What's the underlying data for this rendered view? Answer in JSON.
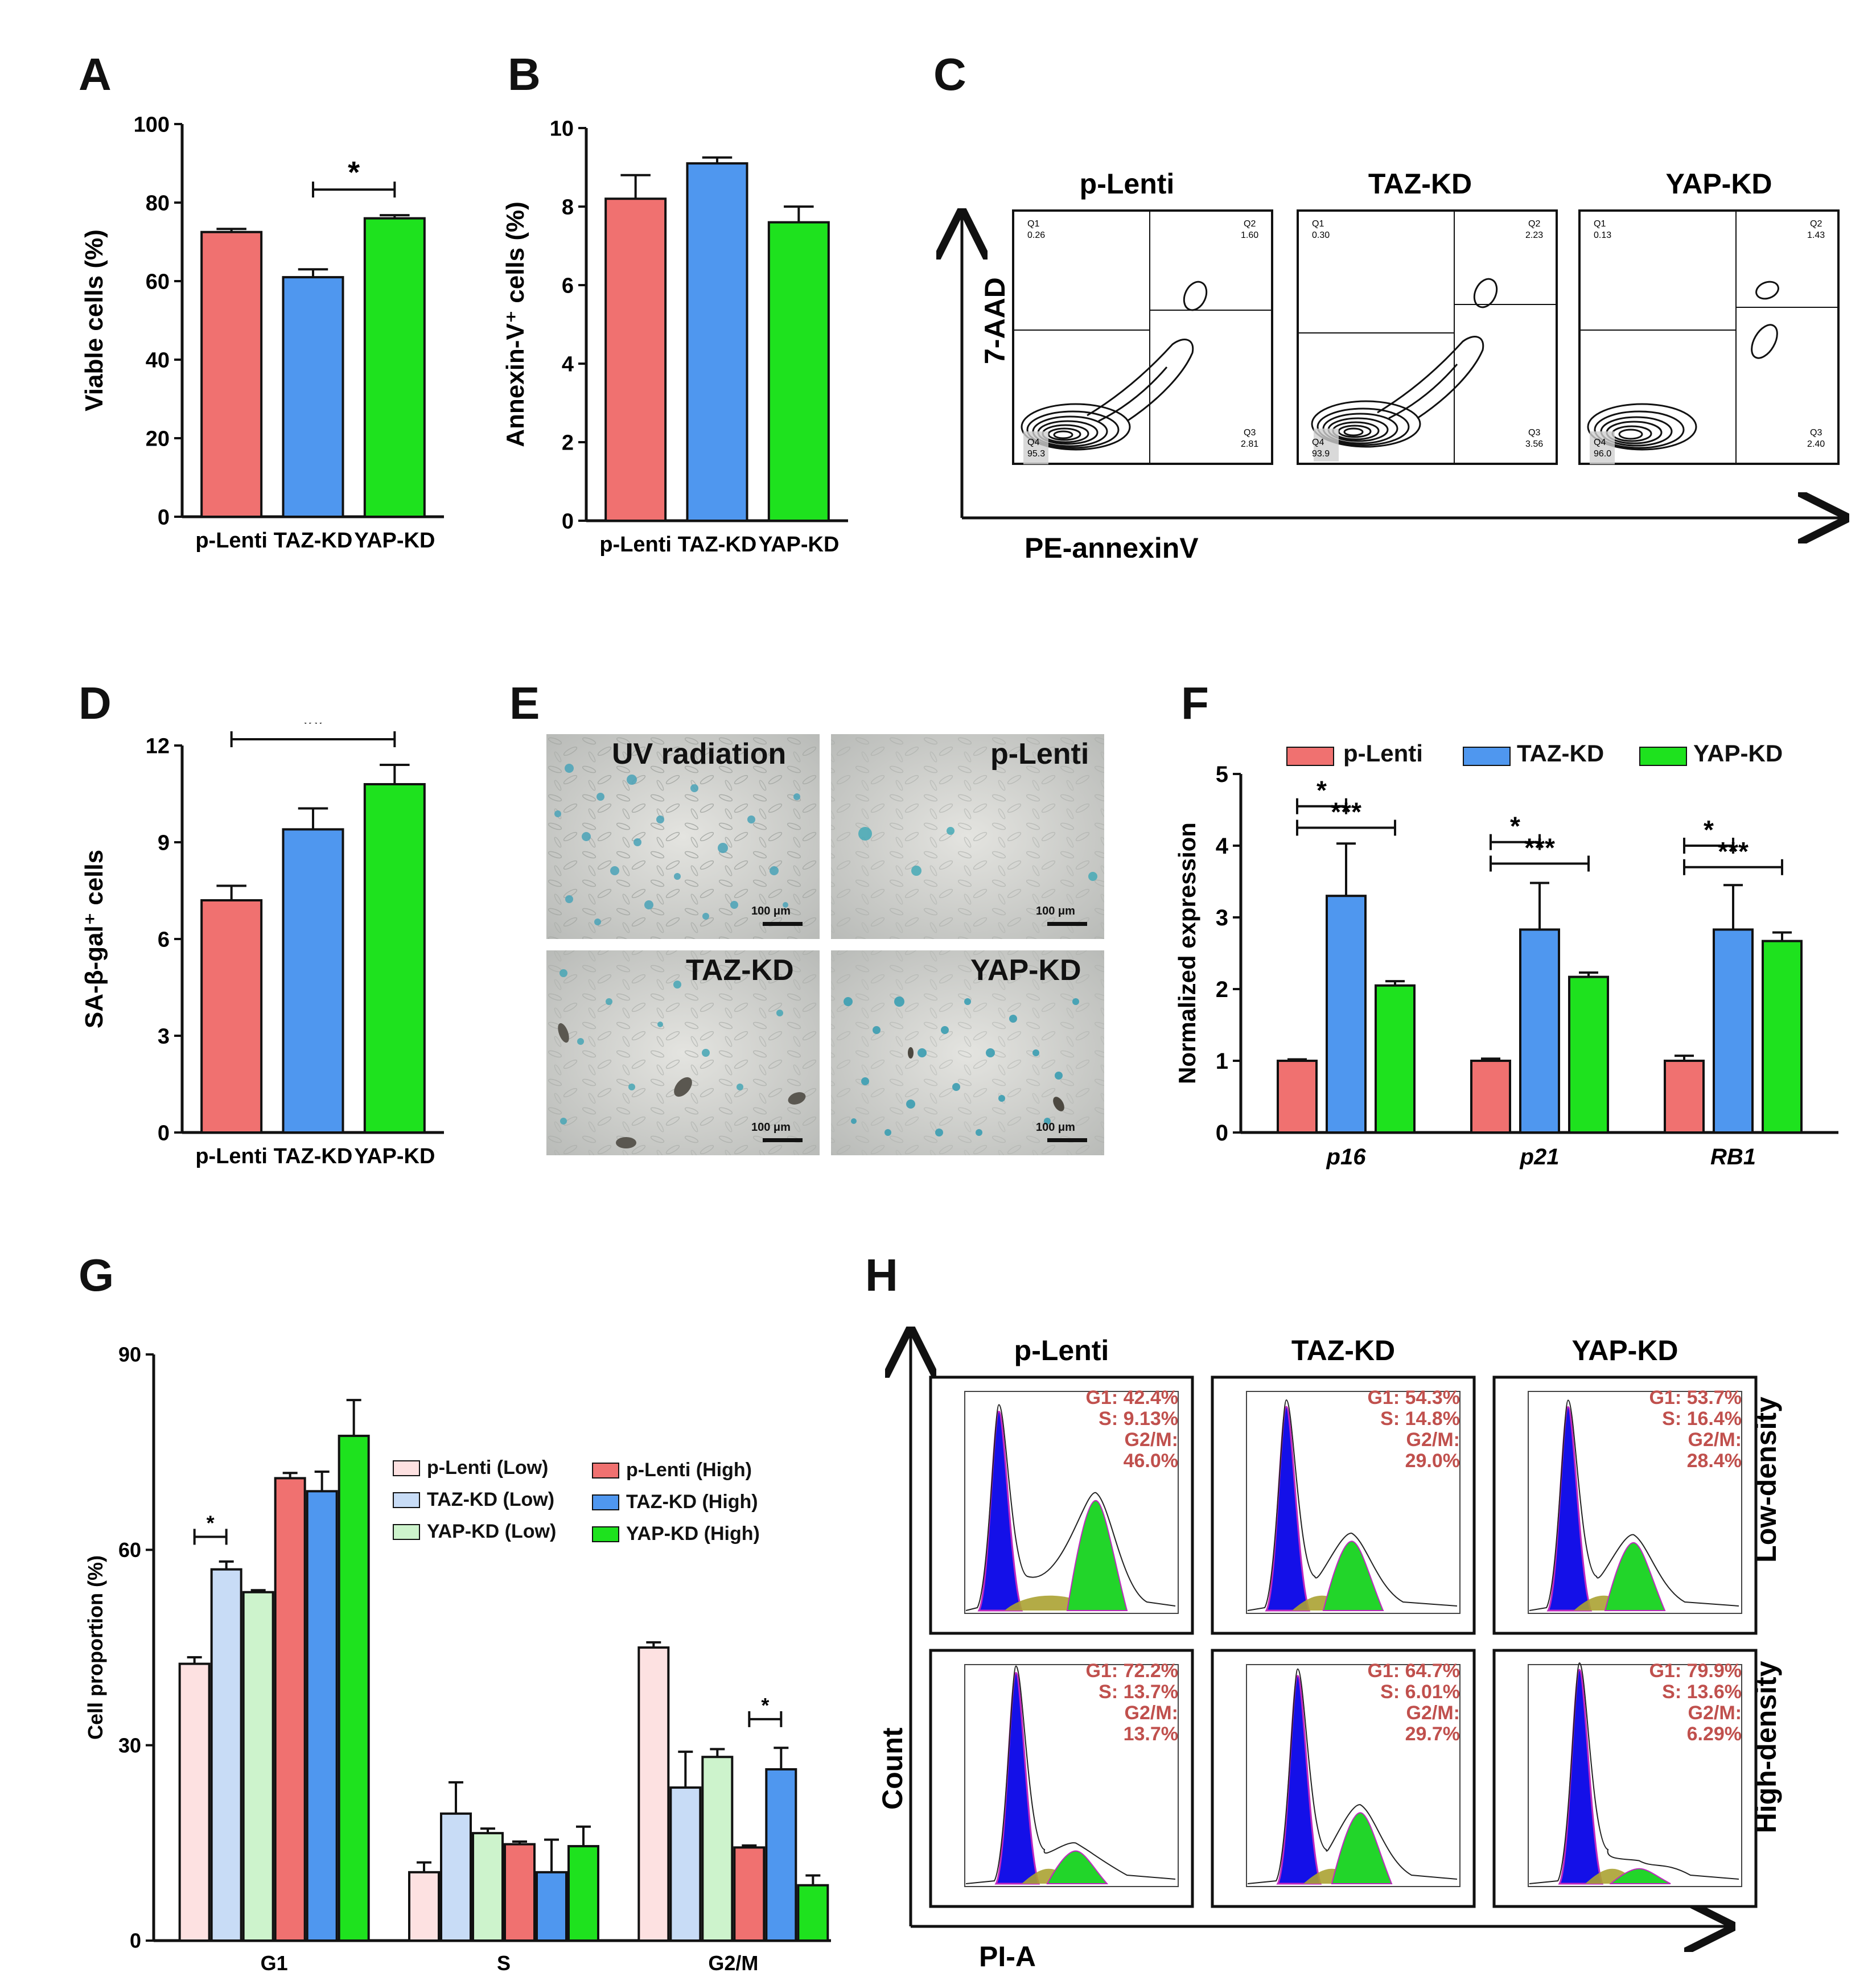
{
  "colors": {
    "plenti": "#f07170",
    "taz": "#4f97ef",
    "yap": "#1ee21e",
    "plenti_low": "#fde1e1",
    "taz_low": "#c8dcf6",
    "yap_low": "#cdf3cc",
    "annot": "#c0504d",
    "flow_blue": "#1410e8",
    "flow_green": "#22d52a",
    "flow_olive": "#aba232",
    "purple": "#c028c0"
  },
  "chart_data": [
    {
      "id": "A",
      "letter": "A",
      "type": "bar",
      "categories": [
        "p-Lenti",
        "TAZ-KD",
        "YAP-KD"
      ],
      "values": [
        72.5,
        61,
        76
      ],
      "errors": [
        0.8,
        2,
        0.8
      ],
      "ylabel": "Viable cells (%)",
      "ylim": [
        0,
        100
      ],
      "yticks": [
        "0",
        "20",
        "40",
        "60",
        "80",
        "100"
      ],
      "signif": [
        {
          "from": 1,
          "to": 2,
          "label": "*"
        }
      ]
    },
    {
      "id": "B",
      "letter": "B",
      "type": "bar",
      "categories": [
        "p-Lenti",
        "TAZ-KD",
        "YAP-KD"
      ],
      "values": [
        8.2,
        9.1,
        7.6
      ],
      "errors": [
        0.6,
        0.15,
        0.4
      ],
      "ylabel": "Annexin-V⁺ cells (%)",
      "ylim": [
        0,
        10
      ],
      "yticks": [
        "0",
        "2",
        "4",
        "6",
        "8",
        "10"
      ],
      "signif": []
    },
    {
      "id": "D",
      "letter": "D",
      "type": "bar",
      "categories": [
        "p-Lenti",
        "TAZ-KD",
        "YAP-KD"
      ],
      "values": [
        7.2,
        9.4,
        10.8
      ],
      "errors": [
        0.45,
        0.65,
        0.6
      ],
      "ylabel": "SA-β-gal⁺ cells",
      "ylim": [
        0,
        12
      ],
      "yticks": [
        "0",
        "3",
        "6",
        "9",
        "12"
      ],
      "signif": [
        {
          "from": 0,
          "to": 2,
          "label": "**"
        }
      ]
    },
    {
      "id": "F",
      "letter": "F",
      "type": "bar",
      "categories": [
        "p16",
        "p21",
        "RB1"
      ],
      "series": [
        {
          "name": "p-Lenti",
          "values": [
            1.0,
            1.0,
            1.0
          ],
          "errors": [
            0.02,
            0.03,
            0.07
          ]
        },
        {
          "name": "TAZ-KD",
          "values": [
            3.3,
            2.83,
            2.83
          ],
          "errors": [
            0.73,
            0.65,
            0.62
          ]
        },
        {
          "name": "YAP-KD",
          "values": [
            2.05,
            2.17,
            2.67
          ],
          "errors": [
            0.06,
            0.06,
            0.12
          ]
        }
      ],
      "ylabel": "Normalized expression",
      "ylim": [
        0,
        5
      ],
      "yticks": [
        "0",
        "1",
        "2",
        "3",
        "4",
        "5"
      ],
      "signif": [
        {
          "group": 0,
          "from": 0,
          "to": 1,
          "label": "*",
          "level": 4.55
        },
        {
          "group": 0,
          "from": 0,
          "to": 2,
          "label": "***",
          "level": 4.25
        },
        {
          "group": 1,
          "from": 0,
          "to": 1,
          "label": "*",
          "level": 4.05
        },
        {
          "group": 1,
          "from": 0,
          "to": 2,
          "label": "***",
          "level": 3.75
        },
        {
          "group": 2,
          "from": 0,
          "to": 1,
          "label": "*",
          "level": 4.0
        },
        {
          "group": 2,
          "from": 0,
          "to": 2,
          "label": "***",
          "level": 3.7
        }
      ]
    },
    {
      "id": "G",
      "letter": "G",
      "type": "bar",
      "categories": [
        "G1",
        "S",
        "G2/M"
      ],
      "series": [
        {
          "name": "p-Lenti (Low)",
          "values": [
            42.5,
            10.5,
            45
          ],
          "errors": [
            1,
            1.5,
            0.8
          ]
        },
        {
          "name": "TAZ-KD (Low)",
          "values": [
            57,
            19.5,
            23.5
          ],
          "errors": [
            1.2,
            4.8,
            5.5
          ]
        },
        {
          "name": "YAP-KD (Low)",
          "values": [
            53.5,
            16.5,
            28.2
          ],
          "errors": [
            0.3,
            0.7,
            1.2
          ]
        },
        {
          "name": "p-Lenti (High)",
          "values": [
            71,
            14.8,
            14.3
          ],
          "errors": [
            0.8,
            0.4,
            0.3
          ]
        },
        {
          "name": "TAZ-KD (High)",
          "values": [
            69,
            10.5,
            26.3
          ],
          "errors": [
            3,
            5,
            3.3
          ]
        },
        {
          "name": "YAP-KD (High)",
          "values": [
            77.5,
            14.5,
            8.5
          ],
          "errors": [
            5.5,
            3,
            1.5
          ]
        }
      ],
      "ylabel": "Cell proportion (%)",
      "ylim": [
        0,
        90
      ],
      "yticks": [
        "0",
        "30",
        "60",
        "90"
      ],
      "signif": [
        {
          "group": 0,
          "from": 0,
          "to": 1,
          "label": "*",
          "level": 62
        },
        {
          "group": 2,
          "from": 3,
          "to": 4,
          "label": "*",
          "level": 34
        }
      ]
    }
  ],
  "panel_c": {
    "letter": "C",
    "titles": [
      "p-Lenti",
      "TAZ-KD",
      "YAP-KD"
    ],
    "xlabel": "PE-annexinV",
    "ylabel": "7-AAD",
    "quadrants": [
      {
        "q1": "Q1",
        "q1v": "0.26",
        "q2": "Q2",
        "q2v": "1.60",
        "q3": "Q3",
        "q3v": "2.81",
        "q4": "Q4",
        "q4v": "95.3"
      },
      {
        "q1": "Q1",
        "q1v": "0.30",
        "q2": "Q2",
        "q2v": "2.23",
        "q3": "Q3",
        "q3v": "3.56",
        "q4": "Q4",
        "q4v": "93.9"
      },
      {
        "q1": "Q1",
        "q1v": "0.13",
        "q2": "Q2",
        "q2v": "1.43",
        "q3": "Q3",
        "q3v": "2.40",
        "q4": "Q4",
        "q4v": "96.0"
      }
    ]
  },
  "panel_e": {
    "letter": "E",
    "images": [
      {
        "label": "UV radiation",
        "scale": "100 μm"
      },
      {
        "label": "p-Lenti",
        "scale": "100 μm"
      },
      {
        "label": "TAZ-KD",
        "scale": "100 μm"
      },
      {
        "label": "YAP-KD",
        "scale": "100 μm"
      }
    ]
  },
  "panel_h": {
    "letter": "H",
    "columns": [
      "p-Lenti",
      "TAZ-KD",
      "YAP-KD"
    ],
    "rows": [
      "Low-density",
      "High-density"
    ],
    "xlabel": "PI-A",
    "ylabel": "Count",
    "cells": [
      {
        "g1": "G1: 42.4%",
        "s": "S: 9.13%",
        "g2a": "G2/M:",
        "g2b": "46.0%",
        "g1v": 42.4,
        "sv": 9.13,
        "g2v": 46.0
      },
      {
        "g1": "G1: 54.3%",
        "s": "S: 14.8%",
        "g2a": "G2/M:",
        "g2b": "29.0%",
        "g1v": 54.3,
        "sv": 14.8,
        "g2v": 29.0
      },
      {
        "g1": "G1: 53.7%",
        "s": "S: 16.4%",
        "g2a": "G2/M:",
        "g2b": "28.4%",
        "g1v": 53.7,
        "sv": 16.4,
        "g2v": 28.4
      },
      {
        "g1": "G1: 72.2%",
        "s": "S: 13.7%",
        "g2a": "G2/M:",
        "g2b": "13.7%",
        "g1v": 72.2,
        "sv": 13.7,
        "g2v": 13.7
      },
      {
        "g1": "G1: 64.7%",
        "s": "S: 6.01%",
        "g2a": "G2/M:",
        "g2b": "29.7%",
        "g1v": 64.7,
        "sv": 6.01,
        "g2v": 29.7
      },
      {
        "g1": "G1: 79.9%",
        "s": "S: 13.6%",
        "g2a": "G2/M:",
        "g2b": "6.29%",
        "g1v": 79.9,
        "sv": 13.6,
        "g2v": 6.29
      }
    ]
  }
}
